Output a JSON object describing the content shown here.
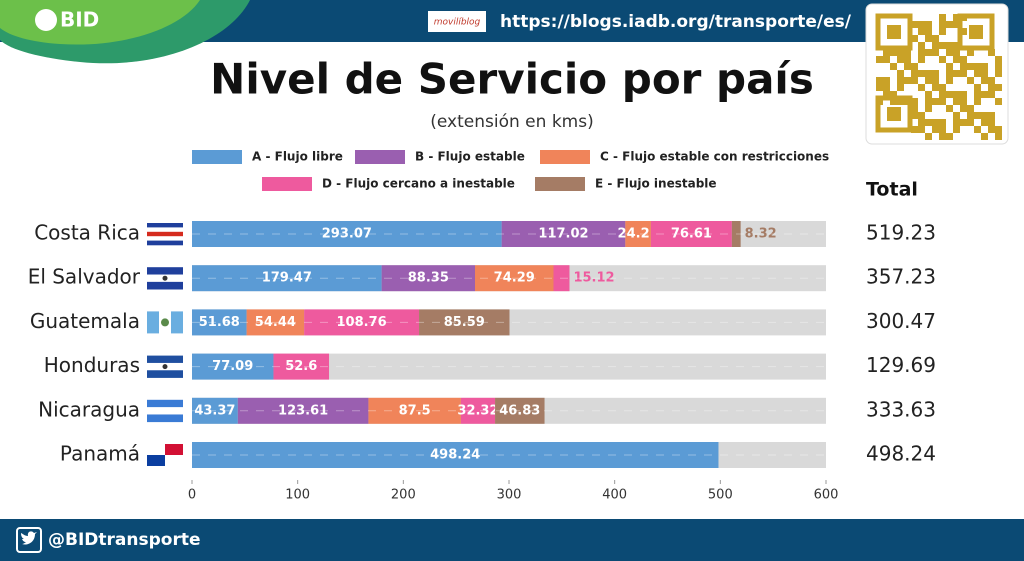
{
  "header": {
    "brand": "BID",
    "blog": "movilíblog",
    "url": "https://blogs.iadb.org/transporte/es/"
  },
  "footer": {
    "handle": "@BIDtransporte"
  },
  "chart_data": {
    "type": "stacked-barh",
    "title": "Nivel de Servicio por país",
    "subtitle": "(extensión en kms)",
    "categories": [
      "Costa Rica",
      "El Salvador",
      "Guatemala",
      "Honduras",
      "Nicaragua",
      "Panamá"
    ],
    "series": [
      {
        "name": "A - Flujo libre",
        "color": "#5b9bd5",
        "values": [
          293.07,
          179.47,
          51.68,
          77.09,
          43.37,
          498.24
        ]
      },
      {
        "name": "B - Flujo estable",
        "color": "#9a5fb0",
        "values": [
          117.02,
          88.35,
          null,
          null,
          123.61,
          null
        ]
      },
      {
        "name": "C - Flujo estable con restricciones",
        "color": "#f0845a",
        "values": [
          24.21,
          74.29,
          54.44,
          null,
          87.5,
          null
        ]
      },
      {
        "name": "D - Flujo cercano a inestable",
        "color": "#ee5a9e",
        "values": [
          76.61,
          15.12,
          108.76,
          52.6,
          32.32,
          null
        ]
      },
      {
        "name": "E - Flujo inestable",
        "color": "#a57c65",
        "values": [
          8.32,
          null,
          85.59,
          null,
          46.83,
          null
        ]
      }
    ],
    "totals_label": "Total",
    "totals": [
      519.23,
      357.23,
      300.47,
      129.69,
      333.63,
      498.24
    ],
    "xlim": [
      0,
      600
    ],
    "xticks": [
      0,
      100,
      200,
      300,
      400,
      500,
      600
    ]
  }
}
